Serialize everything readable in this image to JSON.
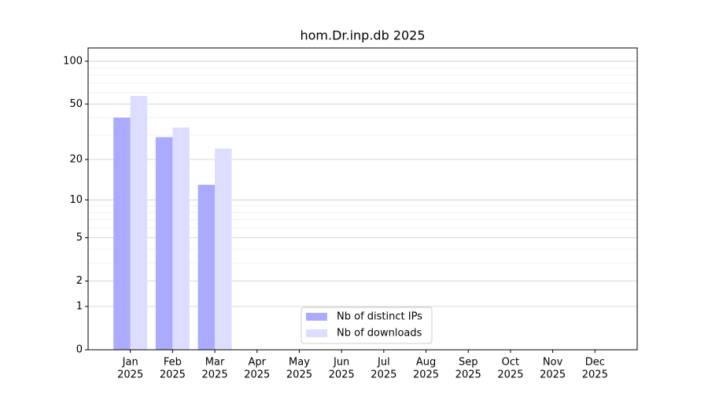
{
  "chart_data": {
    "type": "bar",
    "title": "hom.Dr.inp.db 2025",
    "categories": [
      [
        "Jan",
        "2025"
      ],
      [
        "Feb",
        "2025"
      ],
      [
        "Mar",
        "2025"
      ],
      [
        "Apr",
        "2025"
      ],
      [
        "May",
        "2025"
      ],
      [
        "Jun",
        "2025"
      ],
      [
        "Jul",
        "2025"
      ],
      [
        "Aug",
        "2025"
      ],
      [
        "Sep",
        "2025"
      ],
      [
        "Oct",
        "2025"
      ],
      [
        "Nov",
        "2025"
      ],
      [
        "Dec",
        "2025"
      ]
    ],
    "series": [
      {
        "name": "Nb of distinct IPs",
        "color": "#aaaaff",
        "values": [
          40,
          29,
          13,
          null,
          null,
          null,
          null,
          null,
          null,
          null,
          null,
          null
        ]
      },
      {
        "name": "Nb of downloads",
        "color": "#ddddff",
        "values": [
          57,
          34,
          24,
          null,
          null,
          null,
          null,
          null,
          null,
          null,
          null,
          null
        ]
      }
    ],
    "yscale": "log1p",
    "ylim": [
      0,
      124
    ],
    "yticks": [
      0,
      1,
      2,
      5,
      10,
      20,
      50,
      100
    ],
    "minor_yticks": [
      3,
      4,
      6,
      7,
      8,
      9,
      30,
      40,
      60,
      70,
      80,
      90
    ],
    "grid": true,
    "legend": "lower center"
  }
}
